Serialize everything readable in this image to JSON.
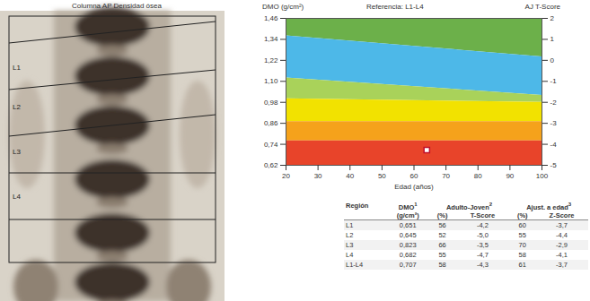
{
  "image": {
    "title": "Columna AP Densidad ósea",
    "regions": [
      "L1",
      "L2",
      "L3",
      "L4"
    ]
  },
  "chart_data": {
    "type": "area",
    "title": "Referencia: L1-L4",
    "ylabel": "DMO (g/cm²)",
    "y2label": "AJ T-Score",
    "xlabel": "Edad (años)",
    "xlim": [
      20,
      100
    ],
    "xticks": [
      20,
      30,
      40,
      50,
      60,
      70,
      80,
      90,
      100
    ],
    "ylim": [
      0.62,
      1.46
    ],
    "yticks": [
      {
        "value": 1.46,
        "label": "1,46"
      },
      {
        "value": 1.34,
        "label": "1,34"
      },
      {
        "value": 1.22,
        "label": "1,22"
      },
      {
        "value": 1.1,
        "label": "1,10"
      },
      {
        "value": 0.98,
        "label": "0,98"
      },
      {
        "value": 0.86,
        "label": "0,86"
      },
      {
        "value": 0.74,
        "label": "0,74"
      },
      {
        "value": 0.62,
        "label": "0,62"
      }
    ],
    "y2lim": [
      -5,
      2
    ],
    "y2ticks": [
      2,
      1,
      0,
      -1,
      -2,
      -3,
      -4,
      -5
    ],
    "bands": [
      {
        "color": "#6cb04a",
        "x": [
          20,
          100
        ],
        "lower": [
          1.36,
          1.24
        ],
        "upper": [
          1.46,
          1.46
        ]
      },
      {
        "color": "#4db8e8",
        "x": [
          20,
          100
        ],
        "lower": [
          1.12,
          1.02
        ],
        "upper": [
          1.36,
          1.24
        ]
      },
      {
        "color": "#a9d25a",
        "x": [
          20,
          100
        ],
        "lower": [
          1.0,
          0.98
        ],
        "upper": [
          1.12,
          1.02
        ]
      },
      {
        "color": "#f2e200",
        "x": [
          20,
          100
        ],
        "lower": [
          0.87,
          0.87
        ],
        "upper": [
          1.0,
          0.98
        ]
      },
      {
        "color": "#f5a21b",
        "x": [
          20,
          100
        ],
        "lower": [
          0.76,
          0.76
        ],
        "upper": [
          0.87,
          0.87
        ]
      },
      {
        "color": "#e8442a",
        "x": [
          20,
          100
        ],
        "lower": [
          0.62,
          0.62
        ],
        "upper": [
          0.76,
          0.76
        ]
      }
    ],
    "points": {
      "x": [
        64
      ],
      "y": [
        0.707
      ],
      "color": "#ffffff",
      "marker": "square"
    }
  },
  "table": {
    "header": [
      {
        "text": "Región"
      },
      {
        "text": "DMO",
        "note": "1",
        "sub": [
          "(g/cm²)"
        ]
      },
      {
        "text": "Adulto-Joven",
        "note": "2",
        "sub": [
          "(%)",
          "T-Score"
        ]
      },
      {
        "text": "Ajust. a edad",
        "note": "3",
        "sub": [
          "(%)",
          "Z-Score"
        ]
      }
    ],
    "rows": [
      [
        "L1",
        "0,651",
        "56",
        "-4,2",
        "60",
        "-3,7"
      ],
      [
        "L2",
        "0,645",
        "52",
        "-5,0",
        "55",
        "-4,4"
      ],
      [
        "L3",
        "0,823",
        "66",
        "-3,5",
        "70",
        "-2,9"
      ],
      [
        "L4",
        "0,682",
        "55",
        "-4,7",
        "58",
        "-4,1"
      ],
      [
        "L1-L4",
        "0,707",
        "58",
        "-4,3",
        "61",
        "-3,7"
      ]
    ]
  }
}
